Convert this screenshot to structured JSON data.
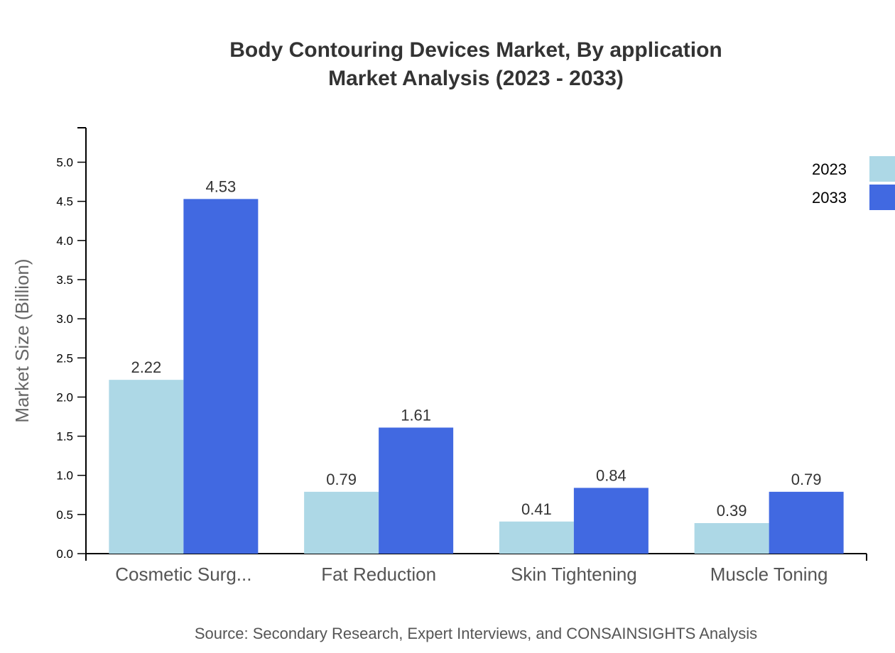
{
  "chart_data": {
    "type": "bar",
    "title": "Body Contouring Devices Market, By application",
    "subtitle": "Market Analysis (2023 - 2033)",
    "xlabel": "",
    "ylabel": "Market Size (Billion)",
    "categories": [
      "Cosmetic Surg...",
      "Fat Reduction",
      "Skin Tightening",
      "Muscle Toning"
    ],
    "series": [
      {
        "name": "2023",
        "color": "#ADD8E6",
        "values": [
          2.22,
          0.79,
          0.41,
          0.39
        ]
      },
      {
        "name": "2033",
        "color": "#4169E1",
        "values": [
          4.53,
          1.61,
          0.84,
          0.79
        ]
      }
    ],
    "ylim": [
      0,
      5.44
    ],
    "yticks": [
      "0.0",
      "0.5",
      "1.0",
      "1.5",
      "2.0",
      "2.5",
      "3.0",
      "3.5",
      "4.0",
      "4.5",
      "5.0"
    ],
    "grid": false,
    "legend_position": "top-right",
    "source": "Source: Secondary Research, Expert Interviews, and CONSAINSIGHTS Analysis"
  }
}
